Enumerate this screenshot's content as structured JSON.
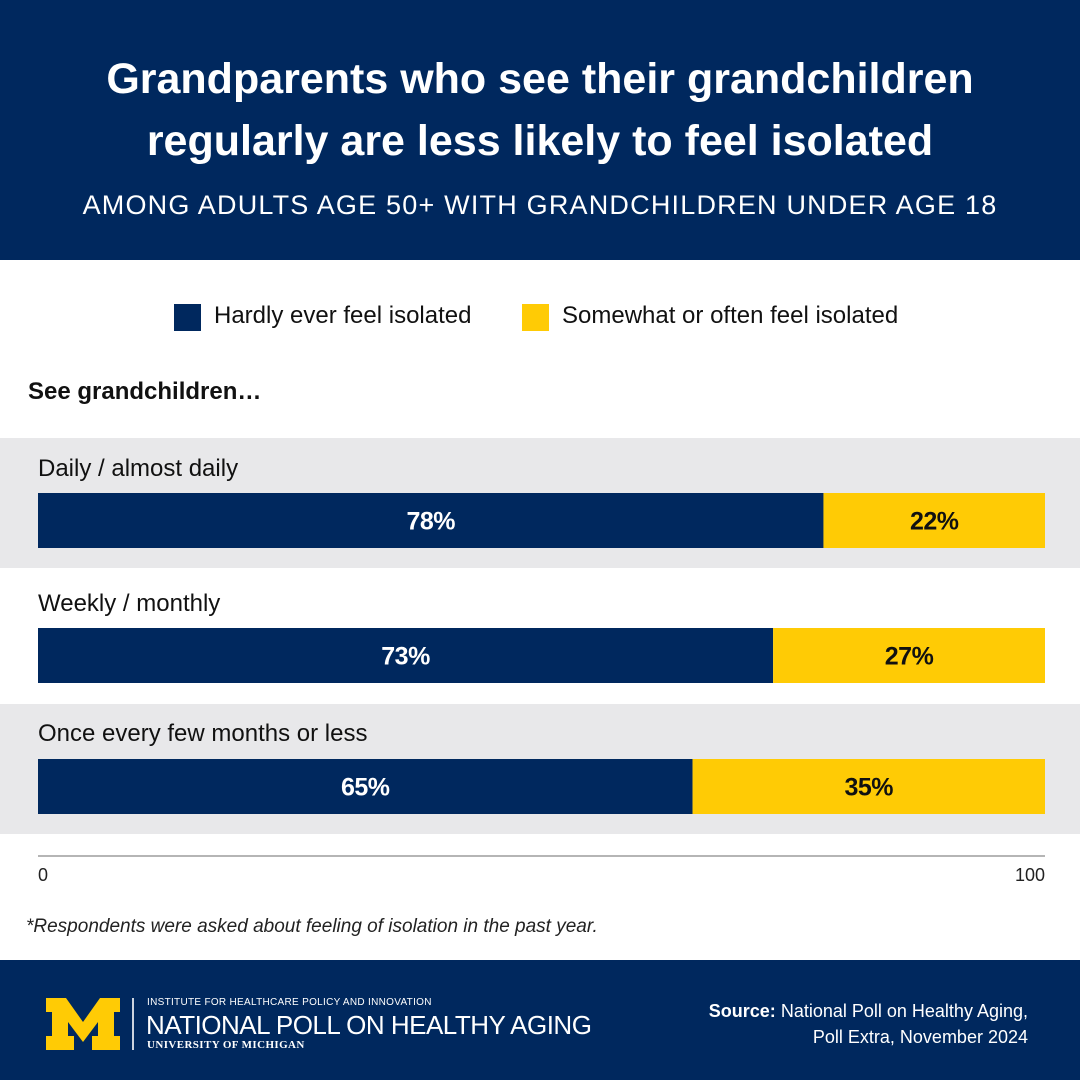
{
  "header": {
    "title_line1": "Grandparents who see their grandchildren",
    "title_line2": "regularly are less likely to feel isolated",
    "subtitle": "AMONG ADULTS AGE 50+ WITH GRANDCHILDREN UNDER AGE 18"
  },
  "colors": {
    "navy": "#00285e",
    "maize": "#ffcb05",
    "row_band": "#e8e8ea"
  },
  "chart_data": {
    "type": "bar",
    "orientation": "horizontal",
    "stacked": true,
    "heading": "See grandchildren…",
    "categories": [
      "Daily / almost daily",
      "Weekly / monthly",
      "Once every few months or less"
    ],
    "series": [
      {
        "name": "Hardly ever feel isolated",
        "values": [
          78,
          73,
          65
        ],
        "labels": [
          "78%",
          "73%",
          "65%"
        ],
        "color": "#00285e"
      },
      {
        "name": "Somewhat or often feel isolated",
        "values": [
          22,
          27,
          35
        ],
        "labels": [
          "22%",
          "27%",
          "35%"
        ],
        "color": "#ffcb05"
      }
    ],
    "xlim": [
      0,
      100
    ],
    "x_tick_labels": [
      "0",
      "100"
    ],
    "legend_position": "top"
  },
  "footnote": "*Respondents were asked about feeling of isolation in the past year.",
  "footer": {
    "institute": "INSTITUTE FOR HEALTHCARE POLICY AND INNOVATION",
    "poll_name": "NATIONAL POLL ON HEALTHY AGING",
    "university": "UNIVERSITY OF MICHIGAN",
    "source_label": "Source:",
    "source_line1": "National Poll on Healthy Aging,",
    "source_line2": "Poll Extra, November 2024"
  }
}
